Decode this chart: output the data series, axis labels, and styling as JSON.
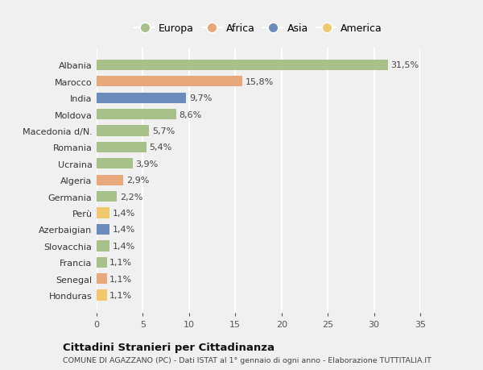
{
  "countries": [
    "Albania",
    "Marocco",
    "India",
    "Moldova",
    "Macedonia d/N.",
    "Romania",
    "Ucraina",
    "Algeria",
    "Germania",
    "Perù",
    "Azerbaigian",
    "Slovacchia",
    "Francia",
    "Senegal",
    "Honduras"
  ],
  "values": [
    31.5,
    15.8,
    9.7,
    8.6,
    5.7,
    5.4,
    3.9,
    2.9,
    2.2,
    1.4,
    1.4,
    1.4,
    1.1,
    1.1,
    1.1
  ],
  "labels": [
    "31,5%",
    "15,8%",
    "9,7%",
    "8,6%",
    "5,7%",
    "5,4%",
    "3,9%",
    "2,9%",
    "2,2%",
    "1,4%",
    "1,4%",
    "1,4%",
    "1,1%",
    "1,1%",
    "1,1%"
  ],
  "continents": [
    "Europa",
    "Africa",
    "Asia",
    "Europa",
    "Europa",
    "Europa",
    "Europa",
    "Africa",
    "Europa",
    "America",
    "Asia",
    "Europa",
    "Europa",
    "Africa",
    "America"
  ],
  "continent_colors": {
    "Europa": "#a8c08a",
    "Africa": "#e8a87c",
    "Asia": "#6b8cba",
    "America": "#f0c96e"
  },
  "legend_order": [
    "Europa",
    "Africa",
    "Asia",
    "America"
  ],
  "background_color": "#f0f0f0",
  "title": "Cittadini Stranieri per Cittadinanza",
  "subtitle": "COMUNE DI AGAZZANO (PC) - Dati ISTAT al 1° gennaio di ogni anno - Elaborazione TUTTITALIA.IT",
  "xlim": [
    0,
    35
  ],
  "xticks": [
    0,
    5,
    10,
    15,
    20,
    25,
    30,
    35
  ],
  "bar_height": 0.65,
  "label_fontsize": 8,
  "ytick_fontsize": 8,
  "xtick_fontsize": 8
}
